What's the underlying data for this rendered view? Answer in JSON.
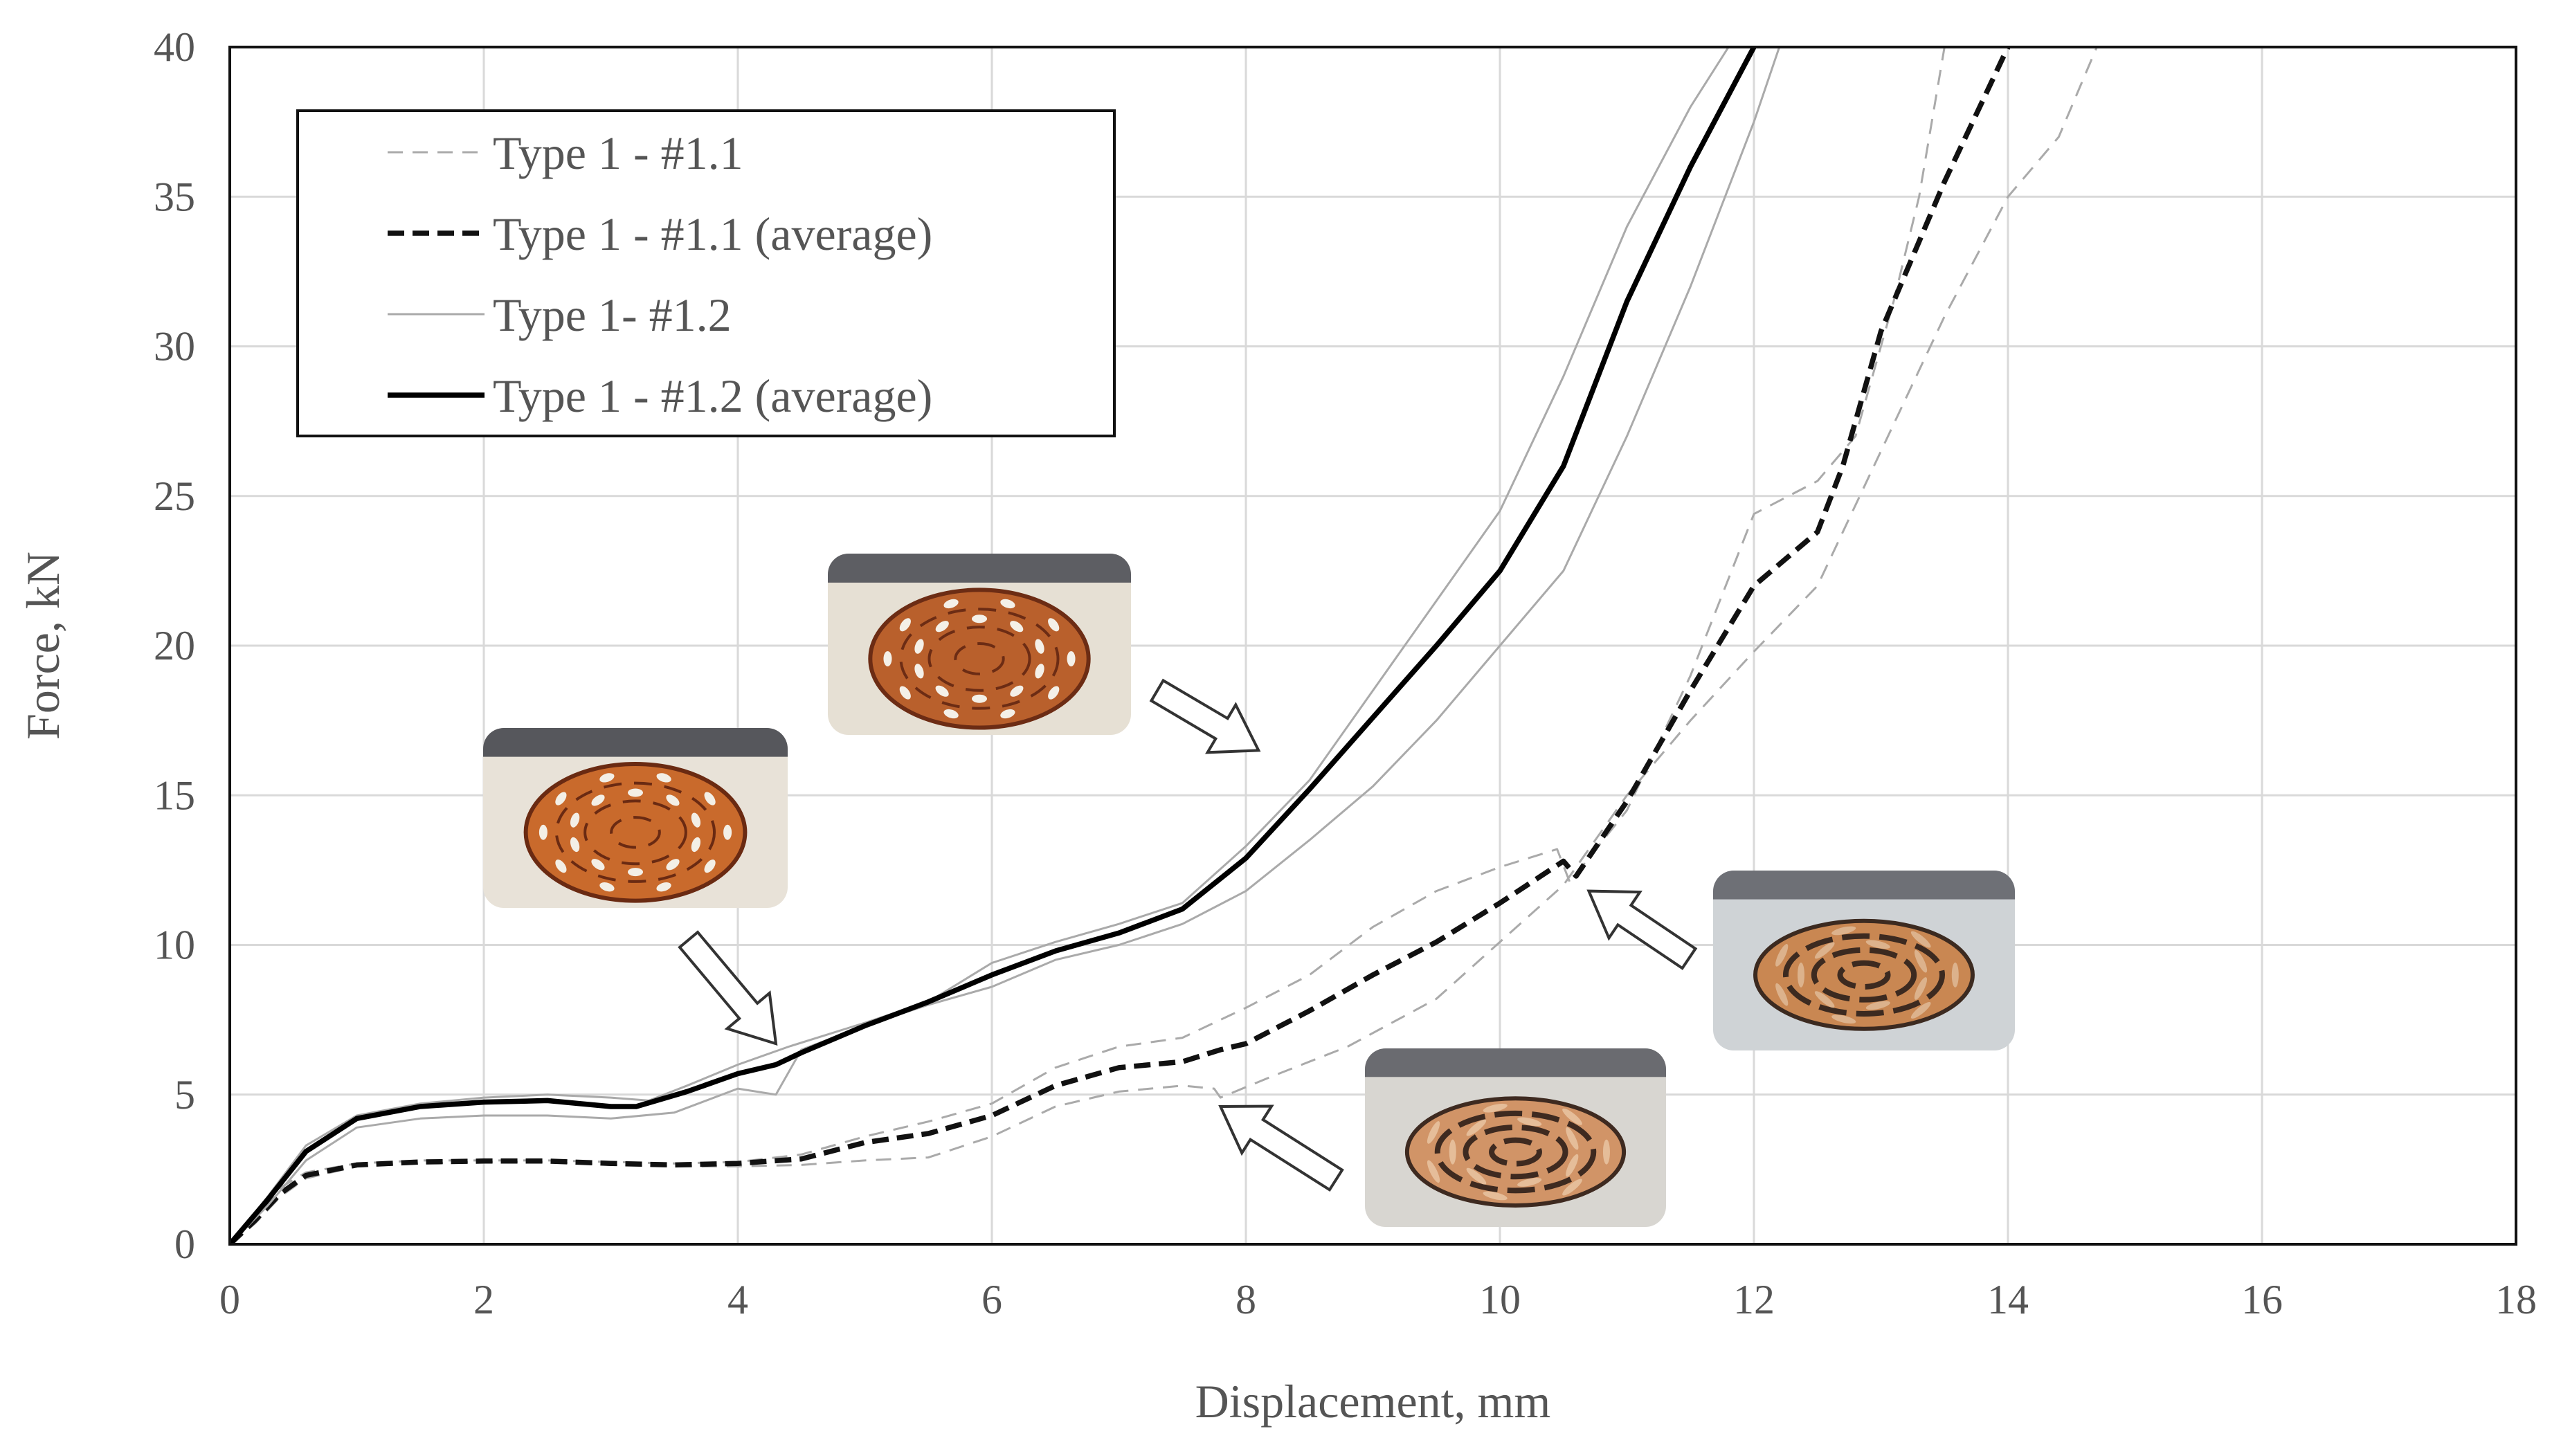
{
  "chart_data": {
    "type": "line",
    "title": "",
    "xlabel": "Displacement, mm",
    "ylabel": "Force, kN",
    "xlim": [
      0,
      18
    ],
    "ylim": [
      0,
      40
    ],
    "xticks": [
      0,
      2,
      4,
      6,
      8,
      10,
      12,
      14,
      16,
      18
    ],
    "yticks": [
      0,
      5,
      10,
      15,
      20,
      25,
      30,
      35,
      40
    ],
    "grid": true,
    "legend_position": "top-left",
    "series": [
      {
        "name": "Type 1 - #1.1",
        "style": "thin-dashed",
        "color": "#aaaaaa",
        "curves": [
          [
            [
              0,
              0
            ],
            [
              0.2,
              0.7
            ],
            [
              0.4,
              1.6
            ],
            [
              0.6,
              2.2
            ],
            [
              1.0,
              2.6
            ],
            [
              1.5,
              2.7
            ],
            [
              2.0,
              2.75
            ],
            [
              2.5,
              2.75
            ],
            [
              3.0,
              2.65
            ],
            [
              3.5,
              2.6
            ],
            [
              4.0,
              2.6
            ],
            [
              4.5,
              2.65
            ],
            [
              5.0,
              2.8
            ],
            [
              5.5,
              2.9
            ],
            [
              6.0,
              3.6
            ],
            [
              6.5,
              4.6
            ],
            [
              7.0,
              5.1
            ],
            [
              7.5,
              5.3
            ],
            [
              7.75,
              5.2
            ],
            [
              7.8,
              4.9
            ],
            [
              8.2,
              5.6
            ],
            [
              8.8,
              6.6
            ],
            [
              9.5,
              8.2
            ],
            [
              10.0,
              10.1
            ],
            [
              10.5,
              12.0
            ],
            [
              11.0,
              15.0
            ],
            [
              11.5,
              17.5
            ],
            [
              12.0,
              19.8
            ],
            [
              12.5,
              22.0
            ],
            [
              13.0,
              26.5
            ],
            [
              13.5,
              31.0
            ],
            [
              14.0,
              35.0
            ],
            [
              14.4,
              37.0
            ],
            [
              14.7,
              40.0
            ]
          ],
          [
            [
              0,
              0
            ],
            [
              0.2,
              0.9
            ],
            [
              0.4,
              1.9
            ],
            [
              0.6,
              2.4
            ],
            [
              1.0,
              2.7
            ],
            [
              1.5,
              2.8
            ],
            [
              2.0,
              2.8
            ],
            [
              2.5,
              2.8
            ],
            [
              3.0,
              2.75
            ],
            [
              3.5,
              2.7
            ],
            [
              4.0,
              2.75
            ],
            [
              4.5,
              3.0
            ],
            [
              5.0,
              3.6
            ],
            [
              5.5,
              4.1
            ],
            [
              6.0,
              4.7
            ],
            [
              6.5,
              5.9
            ],
            [
              7.0,
              6.6
            ],
            [
              7.5,
              6.9
            ],
            [
              8.0,
              7.9
            ],
            [
              8.5,
              9.0
            ],
            [
              9.0,
              10.6
            ],
            [
              9.5,
              11.8
            ],
            [
              10.0,
              12.6
            ],
            [
              10.45,
              13.2
            ],
            [
              10.55,
              12.1
            ],
            [
              11.0,
              14.5
            ],
            [
              11.5,
              19.0
            ],
            [
              12.0,
              24.4
            ],
            [
              12.5,
              25.5
            ],
            [
              12.8,
              27.0
            ],
            [
              13.1,
              31.5
            ],
            [
              13.3,
              35.0
            ],
            [
              13.5,
              40.0
            ]
          ]
        ]
      },
      {
        "name": "Type 1 - #1.1 (average)",
        "style": "thick-dashed",
        "color": "#111111",
        "curves": [
          [
            [
              0,
              0
            ],
            [
              0.2,
              0.8
            ],
            [
              0.4,
              1.7
            ],
            [
              0.6,
              2.3
            ],
            [
              1.0,
              2.65
            ],
            [
              1.5,
              2.75
            ],
            [
              2.0,
              2.78
            ],
            [
              2.5,
              2.78
            ],
            [
              3.0,
              2.7
            ],
            [
              3.5,
              2.65
            ],
            [
              4.0,
              2.7
            ],
            [
              4.5,
              2.85
            ],
            [
              5.0,
              3.4
            ],
            [
              5.5,
              3.7
            ],
            [
              6.0,
              4.3
            ],
            [
              6.5,
              5.3
            ],
            [
              7.0,
              5.9
            ],
            [
              7.5,
              6.1
            ],
            [
              7.8,
              6.5
            ],
            [
              8.0,
              6.7
            ],
            [
              8.5,
              7.8
            ],
            [
              9.0,
              9.0
            ],
            [
              9.5,
              10.1
            ],
            [
              10.0,
              11.4
            ],
            [
              10.5,
              12.8
            ],
            [
              10.6,
              12.3
            ],
            [
              11.0,
              14.8
            ],
            [
              11.5,
              18.5
            ],
            [
              12.0,
              22.0
            ],
            [
              12.5,
              23.8
            ],
            [
              12.7,
              26.0
            ],
            [
              13.0,
              30.5
            ],
            [
              13.5,
              35.5
            ],
            [
              14.0,
              40.0
            ]
          ]
        ]
      },
      {
        "name": "Type 1- #1.2",
        "style": "thin-solid",
        "color": "#aaaaaa",
        "curves": [
          [
            [
              0,
              0
            ],
            [
              0.3,
              1.6
            ],
            [
              0.6,
              3.3
            ],
            [
              1.0,
              4.3
            ],
            [
              1.5,
              4.7
            ],
            [
              2.0,
              4.9
            ],
            [
              2.5,
              5.0
            ],
            [
              3.0,
              4.9
            ],
            [
              3.3,
              4.8
            ],
            [
              3.6,
              5.3
            ],
            [
              4.0,
              6.0
            ],
            [
              4.4,
              6.6
            ],
            [
              5.0,
              7.4
            ],
            [
              5.5,
              8.1
            ],
            [
              6.0,
              9.4
            ],
            [
              6.5,
              10.1
            ],
            [
              7.0,
              10.7
            ],
            [
              7.5,
              11.4
            ],
            [
              8.0,
              13.3
            ],
            [
              8.5,
              15.5
            ],
            [
              9.0,
              18.5
            ],
            [
              9.5,
              21.5
            ],
            [
              10.0,
              24.5
            ],
            [
              10.5,
              29.0
            ],
            [
              11.0,
              34.0
            ],
            [
              11.5,
              38.0
            ],
            [
              11.8,
              40.0
            ]
          ],
          [
            [
              0,
              0
            ],
            [
              0.3,
              1.3
            ],
            [
              0.6,
              2.8
            ],
            [
              1.0,
              3.9
            ],
            [
              1.5,
              4.2
            ],
            [
              2.0,
              4.3
            ],
            [
              2.5,
              4.3
            ],
            [
              3.0,
              4.2
            ],
            [
              3.5,
              4.4
            ],
            [
              4.0,
              5.2
            ],
            [
              4.3,
              5.0
            ],
            [
              4.5,
              6.5
            ],
            [
              5.0,
              7.3
            ],
            [
              5.5,
              8.0
            ],
            [
              6.0,
              8.6
            ],
            [
              6.5,
              9.5
            ],
            [
              7.0,
              10.0
            ],
            [
              7.5,
              10.7
            ],
            [
              8.0,
              11.8
            ],
            [
              8.5,
              13.5
            ],
            [
              9.0,
              15.3
            ],
            [
              9.5,
              17.5
            ],
            [
              10.0,
              20.0
            ],
            [
              10.5,
              22.5
            ],
            [
              11.0,
              27.0
            ],
            [
              11.5,
              32.0
            ],
            [
              12.0,
              37.5
            ],
            [
              12.2,
              40.0
            ]
          ]
        ]
      },
      {
        "name": "Type 1 - #1.2 (average)",
        "style": "thick-solid",
        "color": "#000000",
        "curves": [
          [
            [
              0,
              0
            ],
            [
              0.3,
              1.5
            ],
            [
              0.6,
              3.1
            ],
            [
              1.0,
              4.2
            ],
            [
              1.5,
              4.6
            ],
            [
              2.0,
              4.75
            ],
            [
              2.5,
              4.8
            ],
            [
              3.0,
              4.6
            ],
            [
              3.2,
              4.6
            ],
            [
              3.6,
              5.1
            ],
            [
              4.0,
              5.7
            ],
            [
              4.3,
              6.0
            ],
            [
              4.5,
              6.4
            ],
            [
              5.0,
              7.3
            ],
            [
              5.5,
              8.1
            ],
            [
              6.0,
              9.0
            ],
            [
              6.5,
              9.8
            ],
            [
              7.0,
              10.4
            ],
            [
              7.5,
              11.2
            ],
            [
              8.0,
              12.9
            ],
            [
              8.5,
              15.2
            ],
            [
              9.0,
              17.6
            ],
            [
              9.5,
              20.0
            ],
            [
              10.0,
              22.5
            ],
            [
              10.5,
              26.0
            ],
            [
              11.0,
              31.5
            ],
            [
              11.5,
              36.0
            ],
            [
              12.0,
              40.0
            ]
          ]
        ]
      }
    ],
    "annotations": [
      {
        "name": "photo-1",
        "arrow_target": [
          4.3,
          6.7
        ],
        "colors": {
          "bg": "#e8e2d8",
          "top": "#56575c",
          "specimen": "#c96a2c",
          "dark": "#6a2a12",
          "hole": "#f3efe6"
        }
      },
      {
        "name": "photo-2",
        "arrow_target": [
          8.1,
          16.5
        ],
        "colors": {
          "bg": "#e6e0d4",
          "top": "#5d5e63",
          "specimen": "#b9602c",
          "dark": "#6c2c14",
          "hole": "#f4f0e8"
        }
      },
      {
        "name": "photo-3",
        "arrow_target": [
          10.7,
          11.8
        ],
        "colors": {
          "bg": "#cfd3d6",
          "top": "#6e7076",
          "specimen": "#c98752",
          "dark": "#3c2a20",
          "hole": "#dcb28c"
        }
      },
      {
        "name": "photo-4",
        "arrow_target": [
          7.8,
          4.6
        ],
        "colors": {
          "bg": "#d8d6d1",
          "top": "#6a6b70",
          "specimen": "#d19467",
          "dark": "#3e2a20",
          "hole": "#e5bd99"
        }
      }
    ]
  }
}
